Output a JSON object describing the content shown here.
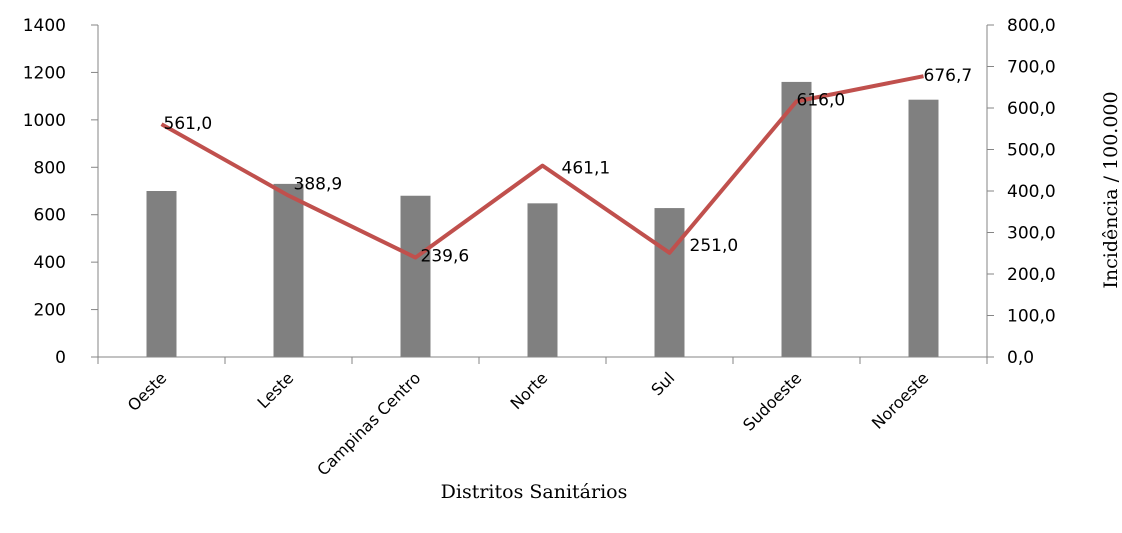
{
  "chart_data": {
    "type": "bar",
    "categories": [
      "Oeste",
      "Leste",
      "Campinas Centro",
      "Norte",
      "Sul",
      "Sudoeste",
      "Noroeste"
    ],
    "series": [
      {
        "type": "bar",
        "axis": "left",
        "color": "#808080",
        "values": [
          700,
          730,
          680,
          648,
          628,
          1160,
          1085
        ]
      },
      {
        "type": "line",
        "axis": "right",
        "color": "#c0504d",
        "values": [
          561.0,
          388.9,
          239.6,
          461.1,
          251.0,
          616.0,
          676.7
        ],
        "value_labels": [
          "561,0",
          "388,9",
          "239,6",
          "461,1",
          "251,0",
          "616,0",
          "676,7"
        ]
      }
    ],
    "xlabel": "Distritos Sanitários",
    "ylabel_left": "",
    "ylabel_right": "Incidência / 100.000",
    "ylim_left": [
      0,
      1400
    ],
    "ylim_right": [
      0,
      800
    ],
    "yticks_left": [
      "0",
      "200",
      "400",
      "600",
      "800",
      "1000",
      "1200",
      "1400"
    ],
    "yticks_right": [
      "0,0",
      "100,0",
      "200,0",
      "300,0",
      "400,0",
      "500,0",
      "600,0",
      "700,0",
      "800,0"
    ],
    "grid": false,
    "legend": "none"
  }
}
